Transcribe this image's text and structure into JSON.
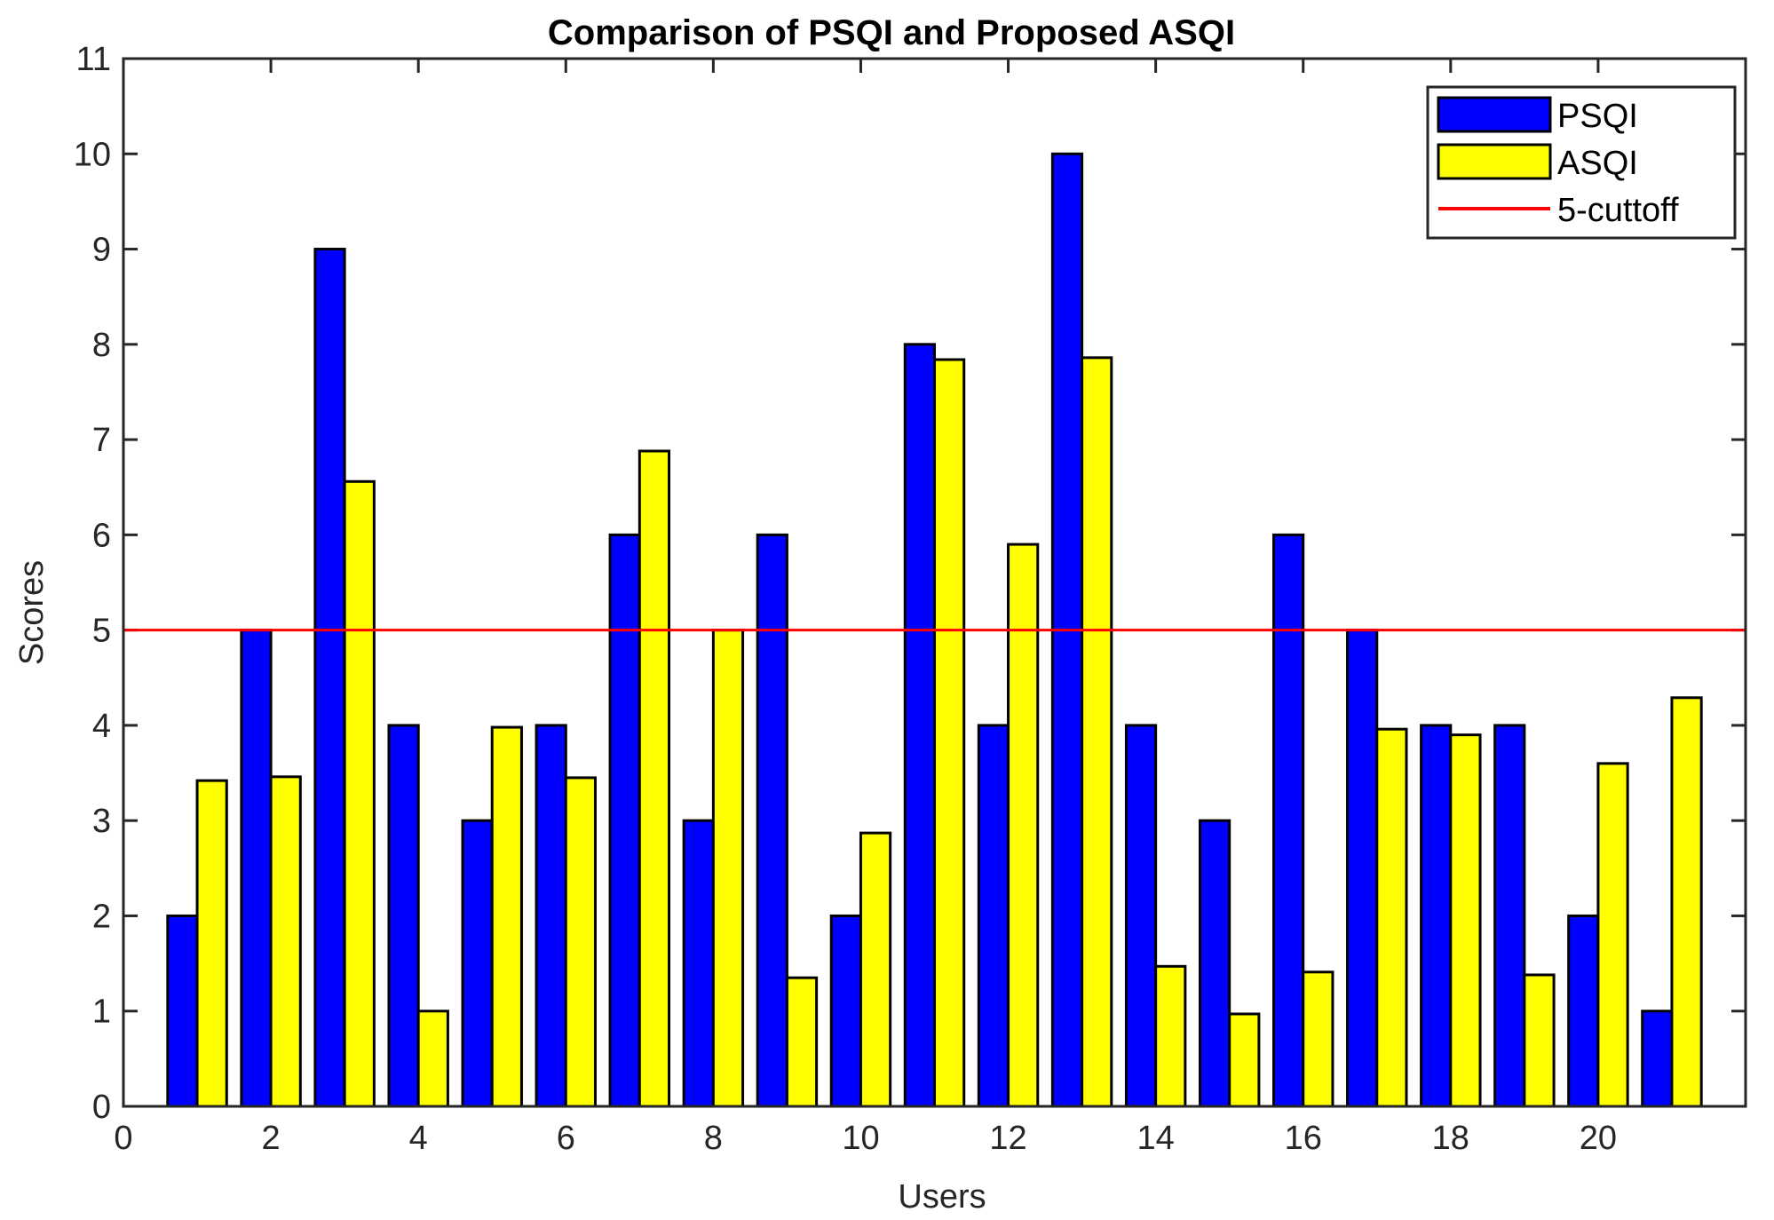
{
  "chart_data": {
    "type": "bar",
    "title": "Comparison of PSQI and Proposed ASQI",
    "xlabel": "Users",
    "ylabel": "Scores",
    "xlim": [
      0,
      22
    ],
    "ylim": [
      0,
      11
    ],
    "x_ticks": [
      0,
      2,
      4,
      6,
      8,
      10,
      12,
      14,
      16,
      18,
      20
    ],
    "y_ticks": [
      0,
      1,
      2,
      3,
      4,
      5,
      6,
      7,
      8,
      9,
      10,
      11
    ],
    "categories": [
      1,
      2,
      3,
      4,
      5,
      6,
      7,
      8,
      9,
      10,
      11,
      12,
      13,
      14,
      15,
      16,
      17,
      18,
      19,
      20,
      21
    ],
    "series": [
      {
        "name": "PSQI",
        "color": "#0000ff",
        "values": [
          2,
          5,
          9,
          4,
          3,
          4,
          6,
          3,
          6,
          2,
          8,
          4,
          10,
          4,
          3,
          6,
          5,
          4,
          4,
          2,
          1
        ]
      },
      {
        "name": "ASQI",
        "color": "#ffff00",
        "values": [
          3.42,
          3.46,
          6.56,
          1.0,
          3.98,
          3.45,
          6.88,
          5.0,
          1.35,
          2.87,
          7.84,
          5.9,
          7.86,
          1.47,
          0.97,
          1.41,
          3.96,
          3.9,
          1.38,
          3.6,
          4.29
        ]
      }
    ],
    "reference_line": {
      "name": "5-cuttoff",
      "value": 5,
      "color": "#ff0000"
    },
    "legend_position": "top-right",
    "grid": false
  }
}
